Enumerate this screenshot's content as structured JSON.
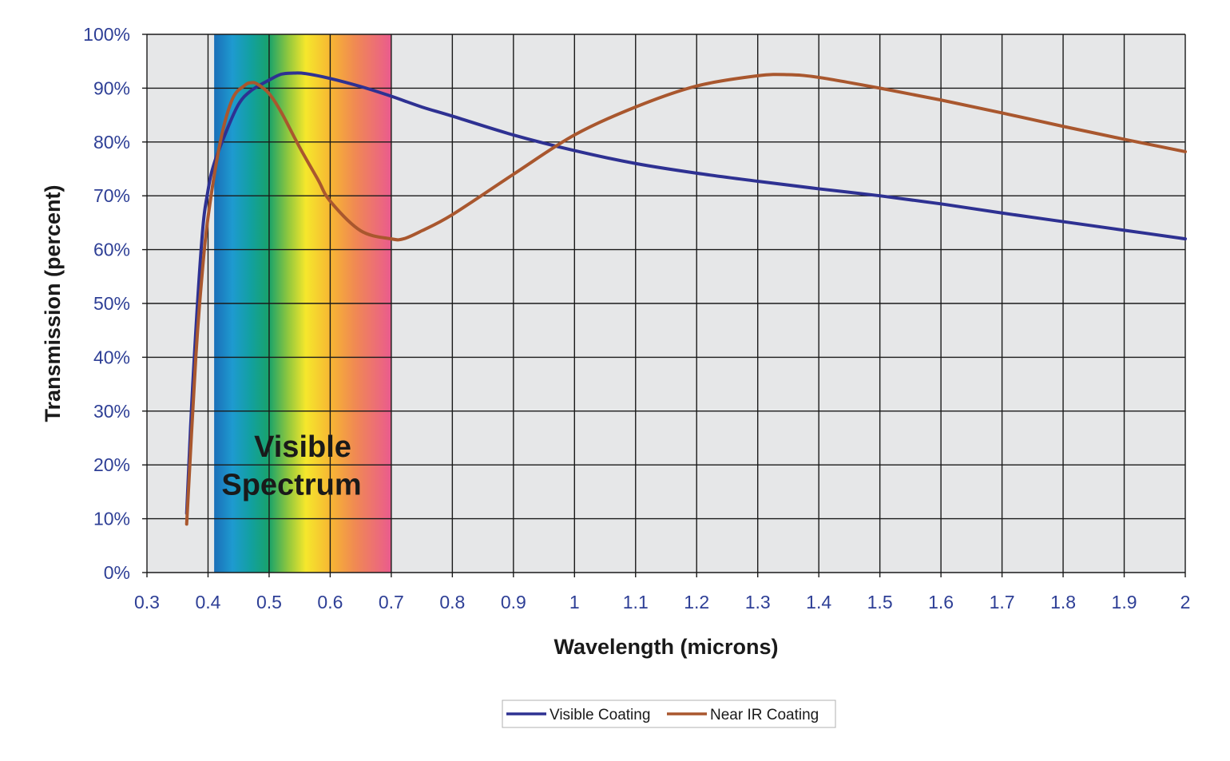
{
  "chart_data": {
    "type": "line",
    "xlabel": "Wavelength (microns)",
    "ylabel": "Transmission (percent)",
    "xlim": [
      0.3,
      2.0
    ],
    "ylim": [
      0,
      100
    ],
    "x_ticks": [
      0.3,
      0.4,
      0.5,
      0.6,
      0.7,
      0.8,
      0.9,
      1.0,
      1.1,
      1.2,
      1.3,
      1.4,
      1.5,
      1.6,
      1.7,
      1.8,
      1.9,
      2.0
    ],
    "x_tick_labels": [
      "0.3",
      "0.4",
      "0.5",
      "0.6",
      "0.7",
      "0.8",
      "0.9",
      "1",
      "1.1",
      "1.2",
      "1.3",
      "1.4",
      "1.5",
      "1.6",
      "1.7",
      "1.8",
      "1.9",
      "2"
    ],
    "y_ticks": [
      0,
      10,
      20,
      30,
      40,
      50,
      60,
      70,
      80,
      90,
      100
    ],
    "y_tick_labels": [
      "0%",
      "10%",
      "20%",
      "30%",
      "40%",
      "50%",
      "60%",
      "70%",
      "80%",
      "90%",
      "100%"
    ],
    "grid": true,
    "legend_position": "bottom-center",
    "visible_band": {
      "line1": "Visible",
      "line2": "Spectrum",
      "x_start": 0.41,
      "x_end": 0.7,
      "stops": [
        {
          "x": 0.41,
          "color": "#1a6fb8"
        },
        {
          "x": 0.44,
          "color": "#1e9ad0"
        },
        {
          "x": 0.47,
          "color": "#12a0a0"
        },
        {
          "x": 0.5,
          "color": "#19a36a"
        },
        {
          "x": 0.53,
          "color": "#8cc63f"
        },
        {
          "x": 0.56,
          "color": "#f5e72c"
        },
        {
          "x": 0.6,
          "color": "#f7b733"
        },
        {
          "x": 0.64,
          "color": "#f08a52"
        },
        {
          "x": 0.7,
          "color": "#ea5b8e"
        }
      ]
    },
    "series": [
      {
        "name": "Visible Coating",
        "color": "#2e3192",
        "x": [
          0.365,
          0.375,
          0.39,
          0.4,
          0.41,
          0.43,
          0.45,
          0.47,
          0.5,
          0.52,
          0.54,
          0.56,
          0.6,
          0.65,
          0.7,
          0.75,
          0.8,
          0.9,
          1.0,
          1.1,
          1.2,
          1.3,
          1.4,
          1.5,
          1.6,
          1.7,
          1.8,
          1.9,
          2.0
        ],
        "y": [
          11,
          35,
          62,
          71,
          76,
          82,
          87,
          89.5,
          91.5,
          92.6,
          92.8,
          92.7,
          91.8,
          90.3,
          88.5,
          86.5,
          84.8,
          81.3,
          78.4,
          76,
          74.2,
          72.7,
          71.3,
          70,
          68.5,
          66.8,
          65.2,
          63.6,
          62
        ]
      },
      {
        "name": "Near IR Coating",
        "color": "#a9572e",
        "x": [
          0.365,
          0.38,
          0.39,
          0.4,
          0.42,
          0.44,
          0.46,
          0.47,
          0.48,
          0.5,
          0.52,
          0.55,
          0.58,
          0.6,
          0.65,
          0.7,
          0.72,
          0.75,
          0.8,
          0.9,
          1.0,
          1.1,
          1.2,
          1.3,
          1.35,
          1.4,
          1.5,
          1.6,
          1.7,
          1.8,
          1.9,
          2.0
        ],
        "y": [
          9,
          40,
          55,
          66,
          80,
          88,
          90.5,
          91,
          90.8,
          89,
          85.5,
          79,
          73,
          69,
          63.5,
          62,
          62,
          63.5,
          66.5,
          74,
          81.3,
          86.5,
          90.4,
          92.3,
          92.5,
          92,
          90,
          87.8,
          85.4,
          82.9,
          80.5,
          78.2
        ]
      }
    ]
  }
}
